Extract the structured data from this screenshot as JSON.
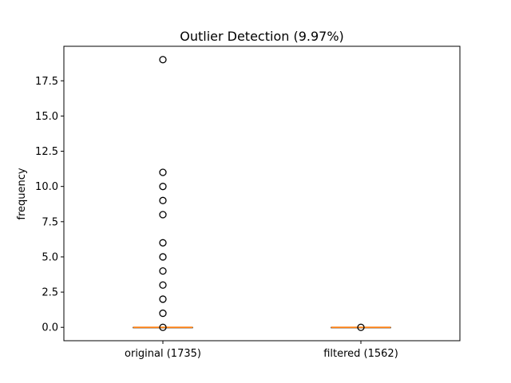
{
  "chart_data": {
    "type": "box",
    "title": "Outlier Detection (9.97%)",
    "xlabel": "",
    "ylabel": "frequency",
    "ylim": [
      -0.95,
      19.95
    ],
    "yticks": [
      0.0,
      2.5,
      5.0,
      7.5,
      10.0,
      12.5,
      15.0,
      17.5
    ],
    "ytick_labels": [
      "0.0",
      "2.5",
      "5.0",
      "7.5",
      "10.0",
      "12.5",
      "15.0",
      "17.5"
    ],
    "grid": false,
    "categories": [
      "original (1735)",
      "filtered (1562)"
    ],
    "boxes": [
      {
        "label": "original (1735)",
        "q1": 0,
        "median": 0,
        "q3": 0,
        "whisker_low": 0,
        "whisker_high": 0,
        "outliers": [
          0,
          1,
          2,
          3,
          4,
          5,
          6,
          8,
          9,
          10,
          11,
          19
        ]
      },
      {
        "label": "filtered (1562)",
        "q1": 0,
        "median": 0,
        "q3": 0,
        "whisker_low": 0,
        "whisker_high": 0,
        "outliers": [
          0
        ]
      }
    ],
    "colors": {
      "median": "#ff7f0e",
      "box": "#000000",
      "flier": "#000000"
    }
  }
}
